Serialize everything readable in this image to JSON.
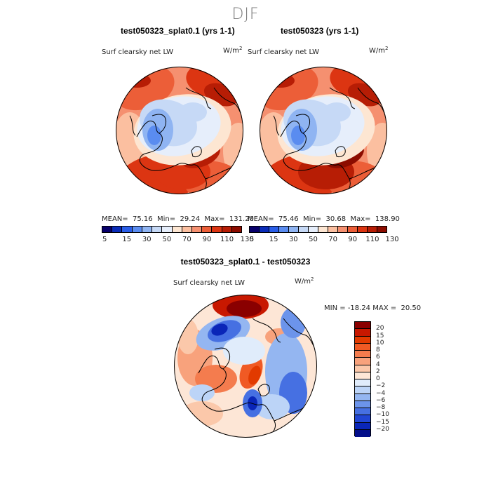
{
  "figure": {
    "season": "DJF",
    "diff_title": "test050323_splat0.1 - test050323"
  },
  "panels": [
    {
      "title": "test050323_splat0.1 (yrs 1-1)",
      "variable": "Surf clearsky net LW",
      "units_base": "W/m",
      "units_exp": "2",
      "mean_label": "MEAN=",
      "mean": "75.16",
      "min_label": "Min=",
      "min": "29.24",
      "max_label": "Max=",
      "max": "131.20"
    },
    {
      "title": "test050323 (yrs 1-1)",
      "variable": "Surf clearsky net LW",
      "units_base": "W/m",
      "units_exp": "2",
      "mean_label": "MEAN=",
      "mean": "75.46",
      "min_label": "Min=",
      "min": "30.68",
      "max_label": "Max=",
      "max": "138.90"
    },
    {
      "title": "test050323_splat0.1 - test050323",
      "variable": "Surf clearsky net LW",
      "units_base": "W/m",
      "units_exp": "2",
      "min_label": "MIN =",
      "min": "-18.24",
      "max_label": "MAX =",
      "max": "20.50"
    }
  ],
  "colorbars": {
    "abs_colors": [
      "#08006b",
      "#0a2cb8",
      "#2a5ee8",
      "#5a8cf0",
      "#8fb4f2",
      "#c6d9f6",
      "#e6eefb",
      "#fde6d2",
      "#fbbfa0",
      "#f59070",
      "#ec5e38",
      "#dc3512",
      "#b71d05",
      "#8c0c00"
    ],
    "abs_labels": [
      "5",
      "15",
      "30",
      "50",
      "70",
      "90",
      "110",
      "130"
    ],
    "diff_colors": [
      "#8a0000",
      "#c81800",
      "#e23a00",
      "#f05a24",
      "#f47c4e",
      "#f8a27c",
      "#fbc8aa",
      "#fde6d6",
      "#e0ecfb",
      "#bcd4f7",
      "#94b6f1",
      "#6c94eb",
      "#4670e2",
      "#2146d4",
      "#0a26b8",
      "#030e8a"
    ],
    "diff_labels": [
      "20",
      "15",
      "10",
      "8",
      "6",
      "4",
      "2",
      "0",
      "−2",
      "−4",
      "−6",
      "−8",
      "−10",
      "−15",
      "−20"
    ]
  },
  "chart_data": [
    {
      "type": "heatmap",
      "projection": "polar stereographic (North Pole)",
      "title": "test050323_splat0.1 (yrs 1-1)",
      "variable": "Surf clearsky net LW",
      "units": "W/m^2",
      "season": "DJF",
      "mean": 75.16,
      "min": 29.24,
      "max": 131.2,
      "contour_levels": [
        5,
        10,
        15,
        20,
        30,
        40,
        50,
        60,
        70,
        80,
        90,
        100,
        110,
        120,
        130
      ]
    },
    {
      "type": "heatmap",
      "projection": "polar stereographic (North Pole)",
      "title": "test050323 (yrs 1-1)",
      "variable": "Surf clearsky net LW",
      "units": "W/m^2",
      "season": "DJF",
      "mean": 75.46,
      "min": 30.68,
      "max": 138.9,
      "contour_levels": [
        5,
        10,
        15,
        20,
        30,
        40,
        50,
        60,
        70,
        80,
        90,
        100,
        110,
        120,
        130
      ]
    },
    {
      "type": "heatmap",
      "projection": "polar stereographic (North Pole)",
      "title": "test050323_splat0.1 - test050323",
      "variable": "Surf clearsky net LW",
      "units": "W/m^2",
      "season": "DJF",
      "min": -18.24,
      "max": 20.5,
      "contour_levels": [
        -20,
        -15,
        -10,
        -8,
        -6,
        -4,
        -2,
        0,
        2,
        4,
        6,
        8,
        10,
        15,
        20
      ]
    }
  ]
}
